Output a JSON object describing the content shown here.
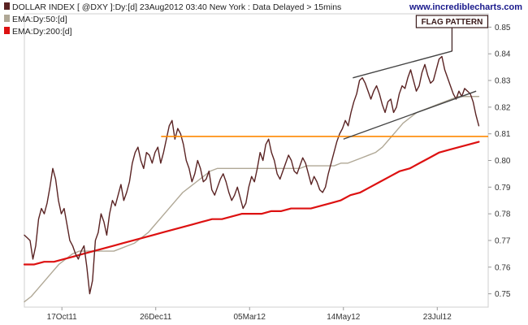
{
  "brand": "www.incrediblecharts.com",
  "chart_data": {
    "type": "line",
    "title": "DOLLAR INDEX [ @DXY ]:Dy:[d]  23Aug2012 03:40 New York : Data Delayed > 15mins",
    "legend_placement": "top-left",
    "grid": false,
    "x_start": "2011-09-19",
    "x_end": "2012-08-23",
    "xlim": [
      "2011-09-19",
      "2012-08-30"
    ],
    "ylim": [
      0.745,
      0.855
    ],
    "x_ticks": [
      {
        "date": "2011-10-17",
        "label": "17Oct11"
      },
      {
        "date": "2011-12-26",
        "label": "26Dec11"
      },
      {
        "date": "2012-03-05",
        "label": "05Mar12"
      },
      {
        "date": "2012-05-14",
        "label": "14May12"
      },
      {
        "date": "2012-07-23",
        "label": "23Jul12"
      }
    ],
    "y_ticks": [
      0.75,
      0.76,
      0.77,
      0.78,
      0.79,
      0.8,
      0.81,
      0.82,
      0.83,
      0.84,
      0.85
    ],
    "y_tick_labels": [
      "0.75",
      "0.76",
      "0.77",
      "0.78",
      "0.79",
      "0.80",
      "0.81",
      "0.82",
      "0.83",
      "0.84",
      "0.85"
    ],
    "series": [
      {
        "name": "DOLLAR INDEX [ @DXY ]:Dy:[d]",
        "color": "#5a2323",
        "values": [
          0.772,
          0.771,
          0.77,
          0.763,
          0.768,
          0.778,
          0.782,
          0.78,
          0.784,
          0.79,
          0.797,
          0.793,
          0.785,
          0.78,
          0.782,
          0.776,
          0.77,
          0.768,
          0.765,
          0.763,
          0.766,
          0.768,
          0.76,
          0.75,
          0.755,
          0.77,
          0.773,
          0.78,
          0.777,
          0.772,
          0.78,
          0.785,
          0.783,
          0.787,
          0.791,
          0.785,
          0.788,
          0.792,
          0.799,
          0.803,
          0.805,
          0.8,
          0.797,
          0.803,
          0.802,
          0.799,
          0.803,
          0.805,
          0.799,
          0.803,
          0.808,
          0.813,
          0.815,
          0.808,
          0.812,
          0.81,
          0.806,
          0.8,
          0.797,
          0.792,
          0.795,
          0.8,
          0.797,
          0.792,
          0.793,
          0.796,
          0.789,
          0.787,
          0.79,
          0.793,
          0.795,
          0.792,
          0.788,
          0.785,
          0.787,
          0.79,
          0.786,
          0.782,
          0.784,
          0.79,
          0.794,
          0.792,
          0.797,
          0.803,
          0.8,
          0.806,
          0.808,
          0.803,
          0.8,
          0.795,
          0.793,
          0.796,
          0.799,
          0.802,
          0.8,
          0.796,
          0.795,
          0.798,
          0.801,
          0.799,
          0.795,
          0.791,
          0.794,
          0.792,
          0.789,
          0.788,
          0.79,
          0.795,
          0.799,
          0.803,
          0.807,
          0.81,
          0.812,
          0.815,
          0.813,
          0.818,
          0.822,
          0.825,
          0.83,
          0.831,
          0.829,
          0.826,
          0.823,
          0.826,
          0.828,
          0.825,
          0.821,
          0.818,
          0.822,
          0.823,
          0.818,
          0.82,
          0.825,
          0.828,
          0.827,
          0.831,
          0.834,
          0.83,
          0.826,
          0.828,
          0.833,
          0.836,
          0.832,
          0.829,
          0.83,
          0.834,
          0.838,
          0.839,
          0.834,
          0.831,
          0.828,
          0.825,
          0.823,
          0.826,
          0.824,
          0.827,
          0.826,
          0.825,
          0.822,
          0.817,
          0.813
        ]
      },
      {
        "name": "EMA:Dy:50:[d]",
        "color": "#b0a896",
        "values": [
          0.747,
          0.749,
          0.752,
          0.755,
          0.758,
          0.761,
          0.763,
          0.765,
          0.766,
          0.766,
          0.766,
          0.766,
          0.766,
          0.766,
          0.767,
          0.768,
          0.769,
          0.771,
          0.773,
          0.776,
          0.779,
          0.782,
          0.785,
          0.788,
          0.79,
          0.792,
          0.794,
          0.796,
          0.797,
          0.797,
          0.797,
          0.797,
          0.797,
          0.797,
          0.797,
          0.797,
          0.797,
          0.797,
          0.797,
          0.797,
          0.797,
          0.798,
          0.798,
          0.798,
          0.798,
          0.798,
          0.799,
          0.799,
          0.8,
          0.801,
          0.802,
          0.803,
          0.805,
          0.808,
          0.811,
          0.814,
          0.816,
          0.818,
          0.819,
          0.82,
          0.821,
          0.822,
          0.823,
          0.824,
          0.824,
          0.824,
          0.824
        ]
      },
      {
        "name": "EMA:Dy:200:[d]",
        "color": "#dd1111",
        "values": [
          0.761,
          0.761,
          0.762,
          0.762,
          0.763,
          0.764,
          0.765,
          0.766,
          0.767,
          0.768,
          0.769,
          0.77,
          0.771,
          0.772,
          0.773,
          0.774,
          0.775,
          0.776,
          0.777,
          0.778,
          0.778,
          0.779,
          0.78,
          0.78,
          0.78,
          0.781,
          0.781,
          0.782,
          0.782,
          0.782,
          0.783,
          0.784,
          0.785,
          0.787,
          0.788,
          0.79,
          0.792,
          0.794,
          0.796,
          0.797,
          0.799,
          0.801,
          0.803,
          0.804,
          0.805,
          0.806,
          0.807
        ]
      }
    ],
    "annotations": [
      {
        "type": "hline",
        "y": 0.809,
        "x_from": "2011-12-30",
        "color": "#ff8800"
      },
      {
        "type": "trendline",
        "x1": "2012-05-21",
        "y1": 0.831,
        "x2": "2012-08-03",
        "y2": 0.841,
        "color": "#444444"
      },
      {
        "type": "trendline",
        "x1": "2012-05-14",
        "y1": 0.808,
        "x2": "2012-08-21",
        "y2": 0.826,
        "color": "#444444"
      },
      {
        "type": "label",
        "text": "FLAG PATTERN",
        "x": "2012-08-03",
        "y": 0.84,
        "color": "#3a1a1a"
      }
    ]
  }
}
